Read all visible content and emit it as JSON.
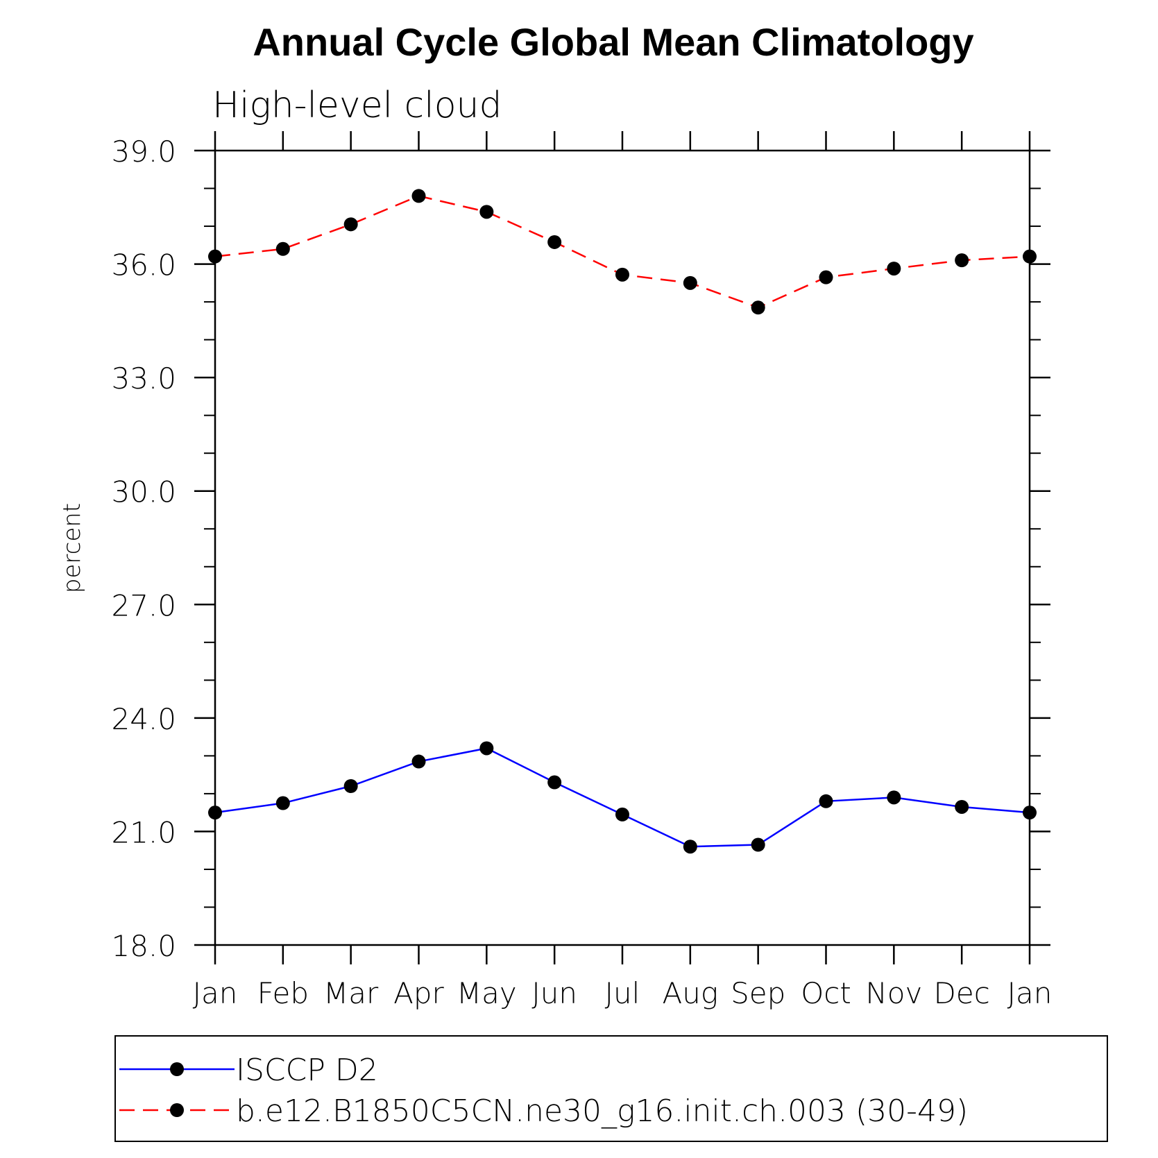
{
  "chart_data": {
    "type": "line",
    "title": "Annual Cycle Global Mean Climatology",
    "subtitle": "High-level cloud",
    "xlabel": "",
    "ylabel": "percent",
    "categories": [
      "Jan",
      "Feb",
      "Mar",
      "Apr",
      "May",
      "Jun",
      "Jul",
      "Aug",
      "Sep",
      "Oct",
      "Nov",
      "Dec",
      "Jan"
    ],
    "ylim": [
      18.0,
      39.0
    ],
    "yticks": [
      "18.0",
      "21.0",
      "24.0",
      "27.0",
      "30.0",
      "33.0",
      "36.0",
      "39.0"
    ],
    "ytick_values": [
      18,
      21,
      24,
      27,
      30,
      33,
      36,
      39
    ],
    "y_minor_step": 1.0,
    "legend_position": "bottom",
    "series": [
      {
        "name": "ISCCP D2",
        "color": "#0000ff",
        "line_style": "solid",
        "marker": "circle",
        "values": [
          21.5,
          21.75,
          22.2,
          22.85,
          23.2,
          22.3,
          21.45,
          20.6,
          20.65,
          21.8,
          21.9,
          21.65,
          21.5
        ]
      },
      {
        "name": "b.e12.B1850C5CN.ne30_g16.init.ch.003 (30-49)",
        "color": "#ff0000",
        "line_style": "dashed",
        "marker": "circle",
        "values": [
          36.2,
          36.4,
          37.05,
          37.8,
          37.38,
          36.58,
          35.72,
          35.5,
          34.85,
          35.65,
          35.88,
          36.1,
          36.2
        ]
      }
    ]
  }
}
